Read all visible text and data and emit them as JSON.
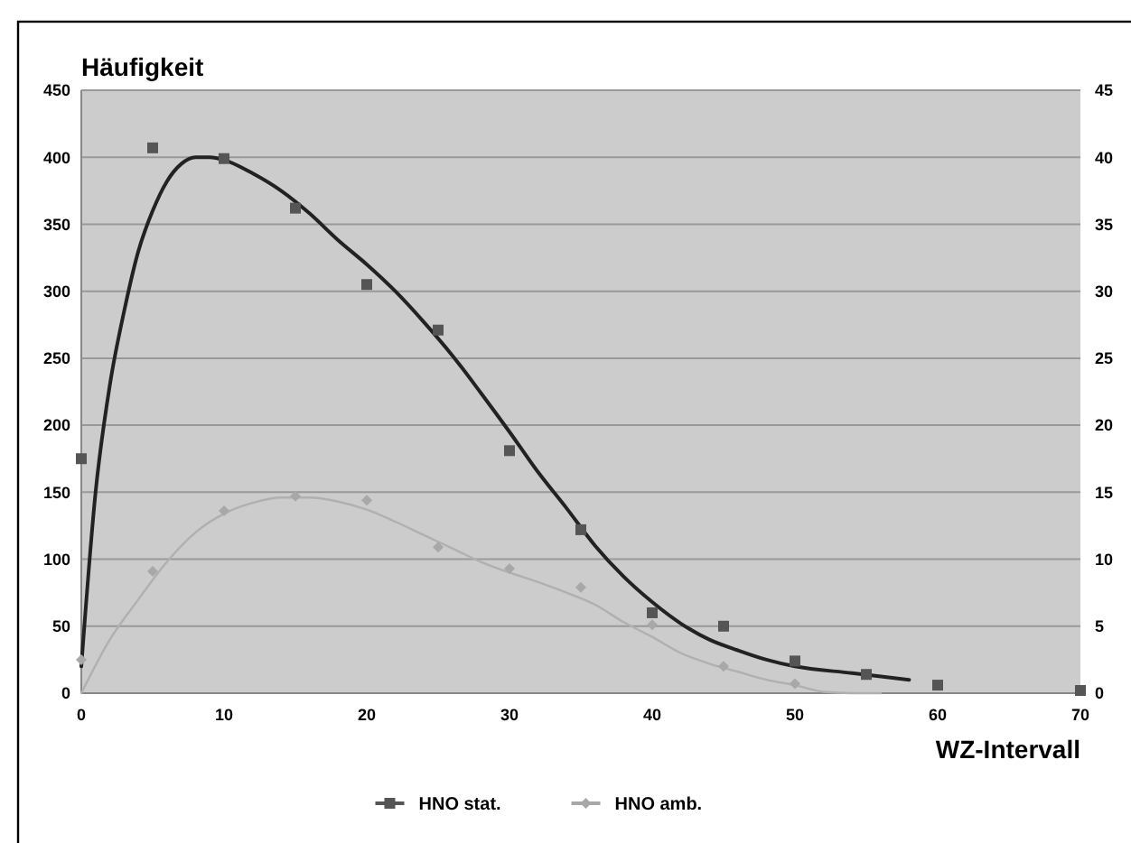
{
  "chart_data": {
    "type": "scatter",
    "ylabel": "Häufigkeit",
    "xlabel": "WZ-Intervall",
    "xlim": [
      0,
      70
    ],
    "xticks": [
      0,
      10,
      20,
      30,
      40,
      50,
      60,
      70
    ],
    "ylim": [
      0,
      450
    ],
    "yticks": [
      0,
      50,
      100,
      150,
      200,
      250,
      300,
      350,
      400,
      450
    ],
    "y2lim": [
      0,
      45
    ],
    "y2ticks": [
      0,
      5,
      10,
      15,
      20,
      25,
      30,
      35,
      40,
      45
    ],
    "grid": "y",
    "legend": "bottom",
    "series": [
      {
        "name": "HNO stat.",
        "marker": "square",
        "color": "#555555",
        "x": [
          0,
          5,
          10,
          15,
          20,
          25,
          30,
          35,
          40,
          45,
          50,
          55,
          60,
          70
        ],
        "values": [
          175,
          407,
          399,
          362,
          305,
          271,
          181,
          122,
          60,
          50,
          24,
          14,
          6,
          2
        ]
      },
      {
        "name": "HNO amb.",
        "marker": "diamond",
        "color": "#a8a8a8",
        "axis": "y2",
        "x": [
          0,
          5,
          10,
          15,
          20,
          25,
          30,
          35,
          40,
          45,
          50
        ],
        "values": [
          2.5,
          9.1,
          13.6,
          14.7,
          14.4,
          10.9,
          9.3,
          7.9,
          5.1,
          2.0,
          0.7
        ]
      },
      {
        "type": "line",
        "marker": "none",
        "color": "#222222",
        "x": [
          0,
          1,
          2,
          3,
          4,
          5,
          6,
          7,
          8,
          9,
          10,
          12,
          14,
          16,
          18,
          20,
          22,
          24,
          26,
          28,
          30,
          32,
          34,
          36,
          38,
          40,
          42,
          44,
          46,
          48,
          50,
          54,
          58
        ],
        "values": [
          20,
          150,
          230,
          285,
          330,
          360,
          382,
          395,
          400,
          400,
          398,
          388,
          375,
          358,
          338,
          320,
          300,
          277,
          252,
          224,
          195,
          165,
          138,
          110,
          87,
          68,
          52,
          40,
          32,
          25,
          20,
          15,
          10
        ]
      },
      {
        "type": "line",
        "marker": "none",
        "color": "#b0b0b0",
        "axis": "y2",
        "x": [
          0,
          2,
          4,
          6,
          8,
          10,
          12,
          14,
          16,
          18,
          20,
          22,
          24,
          26,
          28,
          30,
          32,
          34,
          36,
          38,
          40,
          42,
          44,
          46,
          48,
          50,
          52,
          54,
          56
        ],
        "values": [
          0,
          4,
          7,
          9.8,
          12,
          13.4,
          14.2,
          14.6,
          14.6,
          14.3,
          13.7,
          12.8,
          11.8,
          10.8,
          9.8,
          9.0,
          8.3,
          7.5,
          6.6,
          5.3,
          4.2,
          3,
          2.2,
          1.6,
          1.0,
          0.6,
          0.1,
          0,
          0
        ]
      }
    ]
  }
}
